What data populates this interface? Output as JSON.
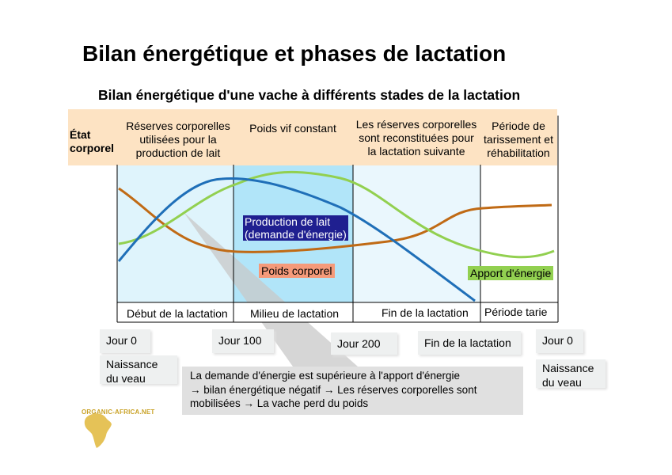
{
  "title": "Bilan énergétique et phases de lactation",
  "subtitle": "Bilan énergétique d'une vache à différents stades de la lactation",
  "header": {
    "row_label_1": "État",
    "row_label_2": "corporel",
    "phase1": [
      "Réserves corporelles",
      "utilisées pour la",
      "production de lait"
    ],
    "phase2": [
      "Poids vif constant"
    ],
    "phase3": [
      "Les réserves corporelles",
      "sont reconstituées pour",
      "la lactation suivante"
    ],
    "phase4": [
      "Période de",
      "tarissement et",
      "réhabilitation"
    ]
  },
  "phases": {
    "p1": "Début de la lactation",
    "p2": "Milieu de lactation",
    "p3": "Fin de la lactation",
    "p4": "Période tarie"
  },
  "curve_labels": {
    "milk_1": "Production de lait",
    "milk_2": "(demande d'énergie)",
    "weight": "Poids corporel",
    "energy": "Apport d'énergie"
  },
  "days": {
    "d0": "Jour 0",
    "d100": "Jour 100",
    "d200": "Jour 200",
    "end": "Fin de la lactation",
    "d0b": "Jour 0",
    "birth_1": "Naissance",
    "birth_2": "du veau",
    "birth2_1": "Naissance",
    "birth2_2": "du veau"
  },
  "note": {
    "line1": "La demande d'énergie est supérieure à l'apport d'énergie",
    "line2": "→ bilan énergétique négatif → Les réserves corporelles sont",
    "line3": "mobilisées → La vache perd du poids"
  },
  "logo": "ORGANIC-AFRICA.NET",
  "colors": {
    "header_bg": "#fde3c3",
    "phase1_bg": "#dff4fc",
    "phase2_bg": "#b1e5f9",
    "phase3_bg": "#eaf7fd",
    "milk_line": "#1f6fb8",
    "weight_line": "#c06a15",
    "energy_line": "#92d050",
    "milk_label_bg": "#1f1f90",
    "weight_label_bg": "#f59a7a",
    "energy_label_bg": "#92d050",
    "note_bg": "#e0e0e0",
    "logo_gold": "#c9a227"
  }
}
